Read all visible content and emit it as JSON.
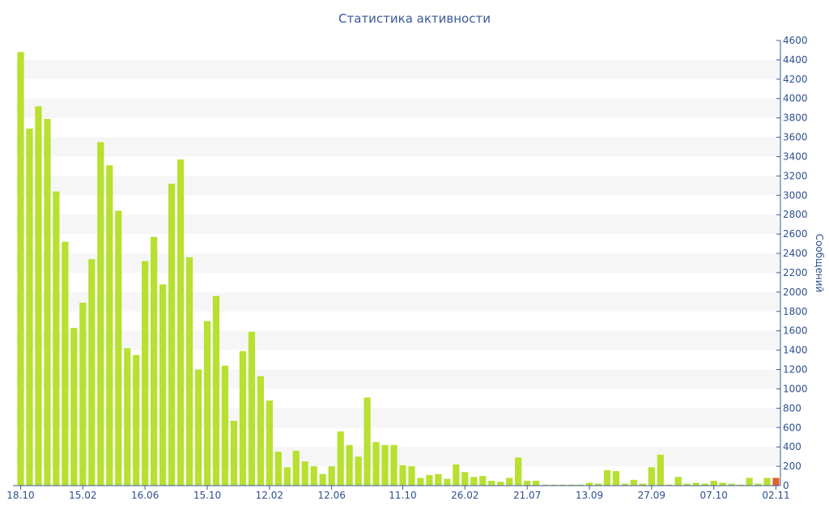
{
  "chart_data": {
    "type": "bar",
    "title": "Статистика активности",
    "ylabel": "Сообщений",
    "ylim": [
      0,
      4600
    ],
    "yticks": [
      0,
      200,
      400,
      600,
      800,
      1000,
      1200,
      1400,
      1600,
      1800,
      2000,
      2200,
      2400,
      2600,
      2800,
      3000,
      3200,
      3400,
      3600,
      3800,
      4000,
      4200,
      4400,
      4600
    ],
    "x_tick_labels": [
      "18.10",
      "15.02",
      "16.06",
      "15.10",
      "12.02",
      "12.06",
      "11.10",
      "26.02",
      "21.07",
      "13.09",
      "27.09",
      "07.10",
      "02.11"
    ],
    "grid": "alternating horizontal bands",
    "y_axis_position": "right",
    "values": [
      4480,
      3690,
      3920,
      3790,
      3040,
      2520,
      1630,
      1890,
      2340,
      3550,
      3310,
      2840,
      1420,
      1350,
      2320,
      2570,
      2080,
      3120,
      3370,
      2360,
      1200,
      1700,
      1960,
      1240,
      670,
      1390,
      1590,
      1130,
      880,
      350,
      190,
      360,
      250,
      200,
      120,
      200,
      560,
      420,
      300,
      910,
      450,
      420,
      420,
      210,
      200,
      80,
      110,
      120,
      70,
      220,
      140,
      90,
      100,
      50,
      40,
      80,
      290,
      50,
      50,
      10,
      10,
      10,
      10,
      10,
      30,
      20,
      160,
      150,
      20,
      60,
      20,
      190,
      320,
      10,
      90,
      20,
      30,
      20,
      50,
      30,
      20,
      10,
      80,
      20,
      80,
      80
    ],
    "series_colors": {
      "bar": "#b8e030",
      "last_bar": "#e06030"
    },
    "axis_color": "#3b5998"
  }
}
